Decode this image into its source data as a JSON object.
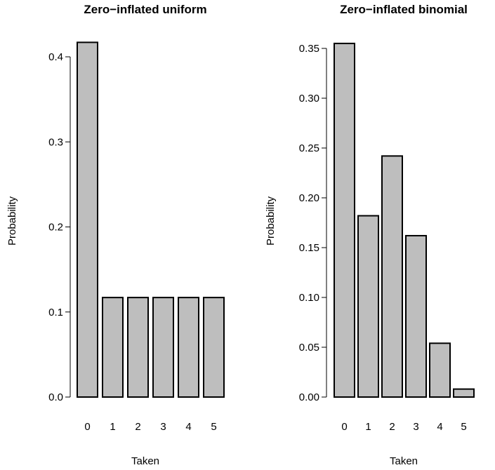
{
  "chart_data": [
    {
      "type": "bar",
      "title": "Zero−inflated uniform",
      "xlabel": "Taken",
      "ylabel": "Probability",
      "categories": [
        "0",
        "1",
        "2",
        "3",
        "4",
        "5"
      ],
      "values": [
        0.417,
        0.117,
        0.117,
        0.117,
        0.117,
        0.117
      ],
      "yticks": [
        "0.0",
        "0.1",
        "0.2",
        "0.3",
        "0.4"
      ],
      "ylim": [
        0,
        0.42
      ],
      "grid": false,
      "bar_color": "#bebebe"
    },
    {
      "type": "bar",
      "title": "Zero−inflated binomial",
      "xlabel": "Taken",
      "ylabel": "Probability",
      "categories": [
        "0",
        "1",
        "2",
        "3",
        "4",
        "5"
      ],
      "values": [
        0.355,
        0.182,
        0.242,
        0.162,
        0.054,
        0.008
      ],
      "yticks": [
        "0.00",
        "0.05",
        "0.10",
        "0.15",
        "0.20",
        "0.25",
        "0.30",
        "0.35"
      ],
      "ylim": [
        0,
        0.36
      ],
      "grid": false,
      "bar_color": "#bebebe"
    }
  ]
}
